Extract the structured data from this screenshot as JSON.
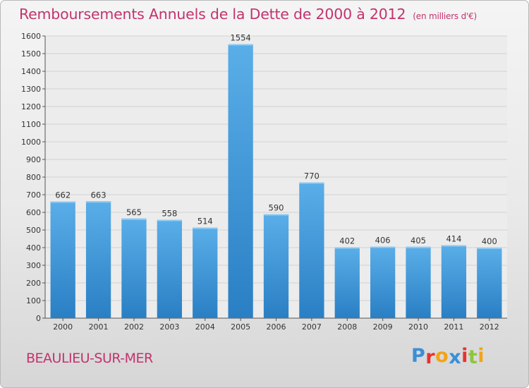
{
  "title": "Remboursements Annuels de la Dette de 2000 à 2012",
  "subtitle": "(en milliers d'€)",
  "commune": "BEAULIEU-SUR-MER",
  "logo": {
    "letters": [
      "P",
      "r",
      "o",
      "x",
      "i",
      "t",
      "i"
    ],
    "colors": [
      "#3a8fd6",
      "#e8322e",
      "#f2a414",
      "#3a8fd6",
      "#e8322e",
      "#8cc63f",
      "#f2a414"
    ]
  },
  "colors": {
    "bar_top": "#5aaee8",
    "bar_bottom": "#2a7fc4",
    "title": "#c2336e"
  },
  "chart_data": {
    "type": "bar",
    "categories": [
      "2000",
      "2001",
      "2002",
      "2003",
      "2004",
      "2005",
      "2006",
      "2007",
      "2008",
      "2009",
      "2010",
      "2011",
      "2012"
    ],
    "values": [
      662,
      663,
      565,
      558,
      514,
      1554,
      590,
      770,
      402,
      406,
      405,
      414,
      400
    ],
    "ylim": [
      0,
      1600
    ],
    "yticks": [
      0,
      100,
      200,
      300,
      400,
      500,
      600,
      700,
      800,
      900,
      1000,
      1100,
      1200,
      1300,
      1400,
      1500,
      1600
    ],
    "grid": true,
    "data_labels": true
  }
}
